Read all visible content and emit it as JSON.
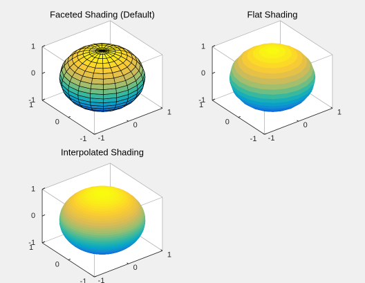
{
  "chart_data": [
    {
      "type": "surface",
      "title": "Faceted Shading (Default)",
      "shading": "faceted",
      "view": [
        -37.5,
        30
      ],
      "xlim": [
        -1,
        1
      ],
      "ylim": [
        -1,
        1
      ],
      "zlim": [
        -1,
        1
      ],
      "xticks": [
        -1,
        0,
        1
      ],
      "yticks": [
        -1,
        0,
        1
      ],
      "zticks": [
        -1,
        0,
        1
      ],
      "grid": false
    },
    {
      "type": "surface",
      "title": "Flat Shading",
      "shading": "flat",
      "view": [
        -37.5,
        30
      ],
      "xlim": [
        -1,
        1
      ],
      "ylim": [
        -1,
        1
      ],
      "zlim": [
        -1,
        1
      ],
      "xticks": [
        -1,
        0,
        1
      ],
      "yticks": [
        -1,
        0,
        1
      ],
      "zticks": [
        -1,
        0,
        1
      ],
      "grid": false
    },
    {
      "type": "surface",
      "title": "Interpolated Shading",
      "shading": "interp",
      "view": [
        -37.5,
        30
      ],
      "xlim": [
        -1,
        1
      ],
      "ylim": [
        -1,
        1
      ],
      "zlim": [
        -1,
        1
      ],
      "xticks": [
        -1,
        0,
        1
      ],
      "yticks": [
        -1,
        0,
        1
      ],
      "zticks": [
        -1,
        0,
        1
      ],
      "grid": false
    }
  ]
}
